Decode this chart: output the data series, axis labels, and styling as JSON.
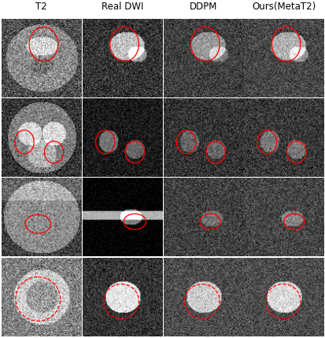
{
  "col_labels": [
    "T2",
    "Real DWI",
    "DDPM",
    "Ours(MetaT2)"
  ],
  "n_rows": 4,
  "n_cols": 4,
  "fig_width": 4.14,
  "fig_height": 4.3,
  "label_fontsize": 8.5,
  "background": "#ffffff",
  "contour_color": "red",
  "contour_lw": 0.9
}
